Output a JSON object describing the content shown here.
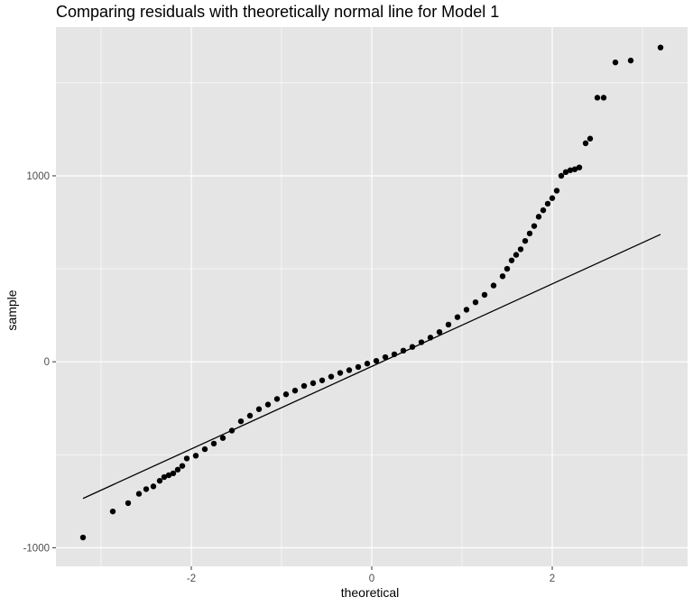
{
  "chart_data": {
    "type": "scatter",
    "title": "Comparing residuals with theoretically normal line for Model 1",
    "xlabel": "theoretical",
    "ylabel": "sample",
    "xlim": [
      -3.5,
      3.5
    ],
    "ylim": [
      -1100,
      1800
    ],
    "x_ticks": [
      -2,
      0,
      2
    ],
    "x_tick_labels": [
      "-2",
      "0",
      "2"
    ],
    "y_ticks": [
      -1000,
      0,
      1000
    ],
    "y_tick_labels": [
      "-1000",
      "0",
      "1000"
    ],
    "grid": true,
    "panel_background": "#e5e5e5",
    "grid_color": "#ffffff",
    "point_color": "#000000",
    "line_color": "#000000",
    "reference_line": {
      "x": [
        -3.2,
        3.2
      ],
      "y": [
        -735,
        685
      ]
    },
    "series": [
      {
        "x": [
          -3.2,
          -2.87,
          -2.7,
          -2.58,
          -2.5,
          -2.42,
          -2.35,
          -2.3,
          -2.25,
          -2.2,
          -2.15,
          -2.1,
          -2.05,
          -1.95,
          -1.85,
          -1.75,
          -1.65,
          -1.55,
          -1.45,
          -1.35,
          -1.25,
          -1.15,
          -1.05,
          -0.95,
          -0.85,
          -0.75,
          -0.65,
          -0.55,
          -0.45,
          -0.35,
          -0.25,
          -0.15,
          -0.05,
          0.05,
          0.15,
          0.25,
          0.35,
          0.45,
          0.55,
          0.65,
          0.75,
          0.85,
          0.95,
          1.05,
          1.15,
          1.25,
          1.35,
          1.45,
          1.5,
          1.55,
          1.6,
          1.65,
          1.7,
          1.75,
          1.8,
          1.85,
          1.9,
          1.95,
          2.0,
          2.05,
          2.1,
          2.15,
          2.2,
          2.25,
          2.3,
          2.37,
          2.42,
          2.5,
          2.57,
          2.7,
          2.87,
          3.2
        ],
        "y": [
          -945,
          -805,
          -760,
          -710,
          -685,
          -670,
          -640,
          -620,
          -610,
          -600,
          -580,
          -560,
          -520,
          -505,
          -470,
          -440,
          -410,
          -370,
          -320,
          -290,
          -255,
          -230,
          -200,
          -175,
          -155,
          -130,
          -115,
          -100,
          -80,
          -60,
          -45,
          -28,
          -10,
          5,
          25,
          40,
          60,
          80,
          105,
          130,
          160,
          200,
          240,
          280,
          320,
          360,
          410,
          460,
          500,
          545,
          575,
          605,
          650,
          690,
          730,
          780,
          815,
          850,
          880,
          920,
          1000,
          1020,
          1030,
          1035,
          1045,
          1175,
          1200,
          1420,
          1420,
          1610,
          1620,
          1690
        ]
      }
    ]
  }
}
